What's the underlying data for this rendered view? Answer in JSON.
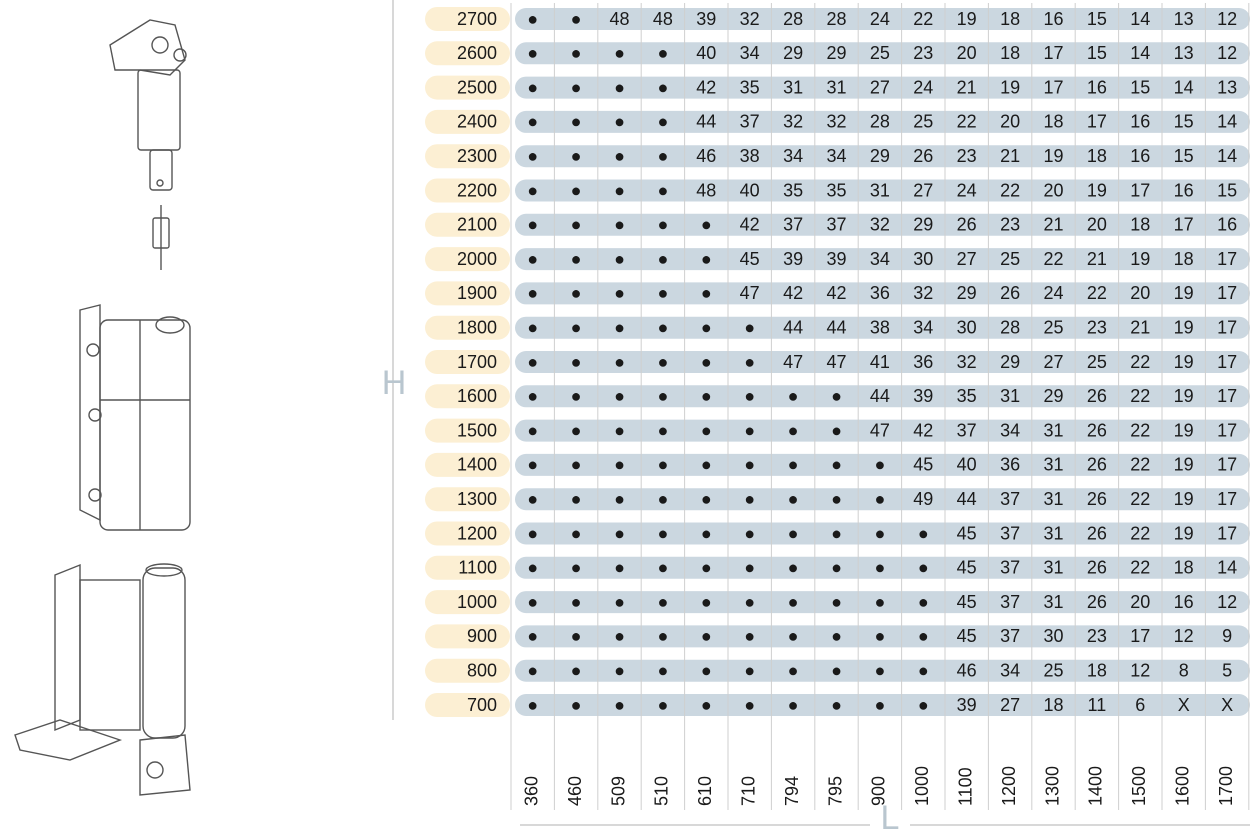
{
  "axis_labels": {
    "h": "H",
    "l": "L"
  },
  "columns": [
    360,
    460,
    509,
    510,
    610,
    710,
    794,
    795,
    900,
    1000,
    1100,
    1200,
    1300,
    1400,
    1500,
    1600,
    1700
  ],
  "rows": [
    {
      "h": 2700,
      "cells": [
        "●",
        "●",
        48,
        48,
        39,
        32,
        28,
        28,
        24,
        22,
        19,
        18,
        16,
        15,
        14,
        13,
        12
      ]
    },
    {
      "h": 2600,
      "cells": [
        "●",
        "●",
        "●",
        "●",
        40,
        34,
        29,
        29,
        25,
        23,
        20,
        18,
        17,
        15,
        14,
        13,
        12
      ]
    },
    {
      "h": 2500,
      "cells": [
        "●",
        "●",
        "●",
        "●",
        42,
        35,
        31,
        31,
        27,
        24,
        21,
        19,
        17,
        16,
        15,
        14,
        13
      ]
    },
    {
      "h": 2400,
      "cells": [
        "●",
        "●",
        "●",
        "●",
        44,
        37,
        32,
        32,
        28,
        25,
        22,
        20,
        18,
        17,
        16,
        15,
        14
      ]
    },
    {
      "h": 2300,
      "cells": [
        "●",
        "●",
        "●",
        "●",
        46,
        38,
        34,
        34,
        29,
        26,
        23,
        21,
        19,
        18,
        16,
        15,
        14
      ]
    },
    {
      "h": 2200,
      "cells": [
        "●",
        "●",
        "●",
        "●",
        48,
        40,
        35,
        35,
        31,
        27,
        24,
        22,
        20,
        19,
        17,
        16,
        15
      ]
    },
    {
      "h": 2100,
      "cells": [
        "●",
        "●",
        "●",
        "●",
        "●",
        42,
        37,
        37,
        32,
        29,
        26,
        23,
        21,
        20,
        18,
        17,
        16
      ]
    },
    {
      "h": 2000,
      "cells": [
        "●",
        "●",
        "●",
        "●",
        "●",
        45,
        39,
        39,
        34,
        30,
        27,
        25,
        22,
        21,
        19,
        18,
        17
      ]
    },
    {
      "h": 1900,
      "cells": [
        "●",
        "●",
        "●",
        "●",
        "●",
        47,
        42,
        42,
        36,
        32,
        29,
        26,
        24,
        22,
        20,
        19,
        17
      ]
    },
    {
      "h": 1800,
      "cells": [
        "●",
        "●",
        "●",
        "●",
        "●",
        "●",
        44,
        44,
        38,
        34,
        30,
        28,
        25,
        23,
        21,
        19,
        17
      ]
    },
    {
      "h": 1700,
      "cells": [
        "●",
        "●",
        "●",
        "●",
        "●",
        "●",
        47,
        47,
        41,
        36,
        32,
        29,
        27,
        25,
        22,
        19,
        17
      ]
    },
    {
      "h": 1600,
      "cells": [
        "●",
        "●",
        "●",
        "●",
        "●",
        "●",
        "●",
        "●",
        44,
        39,
        35,
        31,
        29,
        26,
        22,
        19,
        17
      ]
    },
    {
      "h": 1500,
      "cells": [
        "●",
        "●",
        "●",
        "●",
        "●",
        "●",
        "●",
        "●",
        47,
        42,
        37,
        34,
        31,
        26,
        22,
        19,
        17
      ]
    },
    {
      "h": 1400,
      "cells": [
        "●",
        "●",
        "●",
        "●",
        "●",
        "●",
        "●",
        "●",
        "●",
        45,
        40,
        36,
        31,
        26,
        22,
        19,
        17
      ]
    },
    {
      "h": 1300,
      "cells": [
        "●",
        "●",
        "●",
        "●",
        "●",
        "●",
        "●",
        "●",
        "●",
        49,
        44,
        37,
        31,
        26,
        22,
        19,
        17
      ]
    },
    {
      "h": 1200,
      "cells": [
        "●",
        "●",
        "●",
        "●",
        "●",
        "●",
        "●",
        "●",
        "●",
        "●",
        45,
        37,
        31,
        26,
        22,
        19,
        17
      ]
    },
    {
      "h": 1100,
      "cells": [
        "●",
        "●",
        "●",
        "●",
        "●",
        "●",
        "●",
        "●",
        "●",
        "●",
        45,
        37,
        31,
        26,
        22,
        18,
        14
      ]
    },
    {
      "h": 1000,
      "cells": [
        "●",
        "●",
        "●",
        "●",
        "●",
        "●",
        "●",
        "●",
        "●",
        "●",
        45,
        37,
        31,
        26,
        20,
        16,
        12
      ]
    },
    {
      "h": 900,
      "cells": [
        "●",
        "●",
        "●",
        "●",
        "●",
        "●",
        "●",
        "●",
        "●",
        "●",
        45,
        37,
        30,
        23,
        17,
        12,
        9
      ]
    },
    {
      "h": 800,
      "cells": [
        "●",
        "●",
        "●",
        "●",
        "●",
        "●",
        "●",
        "●",
        "●",
        "●",
        46,
        34,
        25,
        18,
        12,
        8,
        5
      ]
    },
    {
      "h": 700,
      "cells": [
        "●",
        "●",
        "●",
        "●",
        "●",
        "●",
        "●",
        "●",
        "●",
        "●",
        39,
        27,
        18,
        11,
        6,
        "X",
        "X"
      ]
    }
  ]
}
